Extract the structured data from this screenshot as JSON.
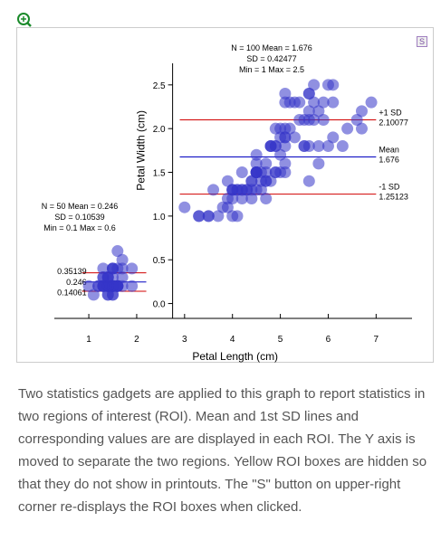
{
  "chart_data": {
    "type": "scatter",
    "x_label": "Petal Length (cm)",
    "y_label": "Petal Width (cm)",
    "xlim": [
      0.28,
      7.75
    ],
    "ylim": [
      -0.17,
      2.85
    ],
    "y_axis_at": 2.75,
    "xticks": [
      1,
      2,
      3,
      4,
      5,
      6,
      7
    ],
    "yticks": [
      {
        "value": 0,
        "label": "0.0"
      },
      {
        "value": 0.5,
        "label": "0.5"
      },
      {
        "value": 1,
        "label": "1.0"
      },
      {
        "value": 1.5,
        "label": "1.5"
      },
      {
        "value": 2,
        "label": "2.0"
      },
      {
        "value": 2.5,
        "label": "2.5"
      }
    ],
    "series": [
      {
        "color": "#3535c8",
        "x": [
          1.4,
          1.4,
          1.3,
          1.5,
          1.4,
          1.7,
          1.4,
          1.5,
          1.4,
          1.5,
          1.5,
          1.6,
          1.4,
          1.1,
          1.2,
          1.5,
          1.3,
          1.4,
          1.7,
          1.5,
          1.7,
          1.5,
          1.0,
          1.7,
          1.9,
          1.6,
          1.6,
          1.5,
          1.4,
          1.6,
          1.6,
          1.5,
          1.5,
          1.4,
          1.5,
          1.2,
          1.3,
          1.4,
          1.3,
          1.5,
          1.3,
          1.3,
          1.3,
          1.6,
          1.9,
          1.4,
          1.6,
          1.4,
          1.5,
          1.4
        ],
        "y": [
          0.2,
          0.2,
          0.2,
          0.2,
          0.2,
          0.4,
          0.3,
          0.2,
          0.2,
          0.1,
          0.2,
          0.2,
          0.1,
          0.1,
          0.2,
          0.4,
          0.4,
          0.3,
          0.3,
          0.3,
          0.2,
          0.4,
          0.2,
          0.5,
          0.2,
          0.2,
          0.4,
          0.2,
          0.2,
          0.2,
          0.2,
          0.4,
          0.1,
          0.2,
          0.2,
          0.2,
          0.2,
          0.1,
          0.2,
          0.2,
          0.3,
          0.3,
          0.2,
          0.6,
          0.4,
          0.3,
          0.2,
          0.2,
          0.2,
          0.2
        ]
      },
      {
        "color": "#3535c8",
        "x": [
          4.7,
          4.5,
          4.9,
          4.0,
          4.6,
          4.5,
          4.7,
          3.3,
          4.6,
          3.9,
          3.5,
          4.2,
          4.0,
          4.7,
          3.6,
          4.4,
          4.5,
          4.1,
          4.5,
          3.9,
          4.8,
          4.0,
          4.9,
          4.7,
          4.3,
          4.4,
          4.8,
          5.0,
          4.5,
          3.5,
          3.8,
          3.7,
          3.9,
          5.1,
          4.5,
          4.5,
          4.7,
          4.4,
          4.1,
          4.0,
          4.4,
          4.6,
          4.0,
          3.3,
          4.2,
          4.2,
          4.2,
          4.3,
          3.0,
          4.1,
          6.0,
          5.1,
          5.9,
          5.6,
          5.8,
          6.6,
          4.5,
          6.3,
          5.8,
          6.1,
          5.1,
          5.3,
          5.5,
          5.0,
          5.1,
          5.3,
          5.5,
          6.7,
          6.9,
          5.0,
          5.7,
          4.9,
          6.7,
          4.9,
          5.7,
          6.0,
          4.8,
          4.9,
          5.6,
          5.8,
          6.1,
          6.4,
          5.6,
          5.1,
          5.6,
          6.1,
          5.6,
          5.5,
          4.8,
          5.4,
          5.6,
          5.1,
          5.1,
          5.9,
          5.7,
          5.2,
          5.0,
          5.2,
          5.4,
          5.1
        ],
        "y": [
          1.4,
          1.5,
          1.5,
          1.3,
          1.5,
          1.3,
          1.6,
          1.0,
          1.3,
          1.4,
          1.0,
          1.5,
          1.0,
          1.4,
          1.3,
          1.4,
          1.5,
          1.0,
          1.5,
          1.1,
          1.8,
          1.3,
          1.5,
          1.2,
          1.3,
          1.4,
          1.4,
          1.7,
          1.5,
          1.0,
          1.1,
          1.0,
          1.2,
          1.6,
          1.5,
          1.6,
          1.5,
          1.3,
          1.3,
          1.3,
          1.2,
          1.4,
          1.2,
          1.0,
          1.3,
          1.2,
          1.3,
          1.3,
          1.1,
          1.3,
          2.5,
          1.9,
          2.1,
          1.8,
          2.2,
          2.1,
          1.7,
          1.8,
          1.8,
          2.5,
          2.0,
          1.9,
          2.1,
          2.0,
          2.4,
          2.3,
          1.8,
          2.2,
          2.3,
          1.5,
          2.3,
          2.0,
          2.0,
          1.8,
          2.1,
          1.8,
          1.8,
          1.8,
          2.1,
          1.6,
          1.9,
          2.0,
          2.2,
          1.5,
          1.4,
          2.3,
          2.4,
          1.8,
          1.8,
          2.1,
          2.4,
          2.3,
          1.9,
          2.3,
          2.5,
          2.3,
          1.9,
          2.0,
          2.3,
          1.8
        ]
      }
    ],
    "regions": [
      {
        "roi_x": [
          0.86,
          2.2
        ],
        "stats_text": [
          "N = 50 Mean = 0.246",
          "SD = 0.10539",
          "Min = 0.1 Max = 0.6"
        ],
        "lines": [
          {
            "value": 0.35139,
            "color": "#d00000"
          },
          {
            "value": 0.246,
            "color": "#0000c0"
          },
          {
            "value": 0.14061,
            "color": "#d00000"
          }
        ]
      },
      {
        "roi_x": [
          2.9,
          7.0
        ],
        "stats_text": [
          "N = 100 Mean = 1.676",
          "SD = 0.42477",
          "Min = 1 Max = 2.5"
        ],
        "lines": [
          {
            "value": 2.10077,
            "color": "#d00000",
            "name": "+1 SD"
          },
          {
            "value": 1.676,
            "color": "#0000c0",
            "name": "Mean"
          },
          {
            "value": 1.25123,
            "color": "#d00000",
            "name": "-1 SD"
          }
        ]
      }
    ]
  },
  "s_button": "S",
  "caption": "Two statistics gadgets are applied to this graph to report statistics in two regions of interest (ROI). Mean and 1st SD lines and corresponding values are are displayed in each ROI. The Y axis is moved to separate the two regions. Yellow ROI boxes are hidden so that they do not show in printouts. The \"S\" button on upper-right corner re-displays the ROI boxes when clicked."
}
